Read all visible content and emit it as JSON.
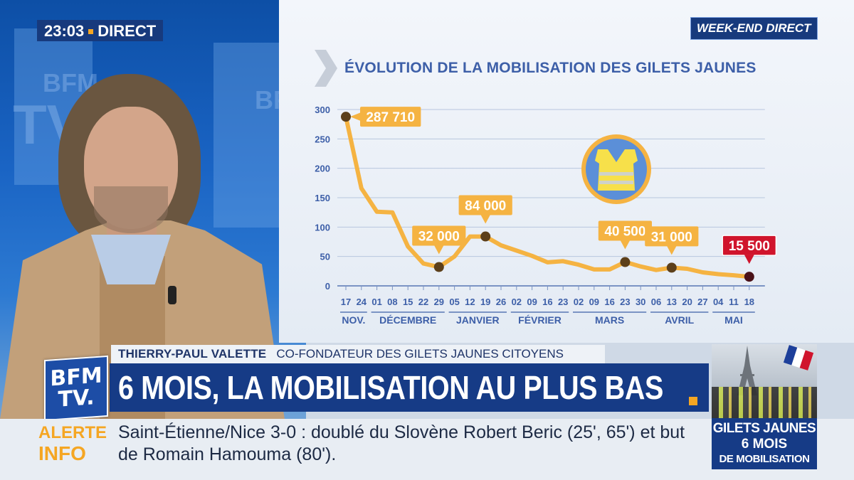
{
  "broadcast": {
    "clock": "23:03",
    "live_label": "DIRECT",
    "program_badge": "WEEK-END DIRECT",
    "channel_logo": [
      "BFM",
      "TV."
    ]
  },
  "speaker": {
    "name": "THIERRY-PAUL VALETTE",
    "title": "CO-FONDATEUR DES GILETS JAUNES CITOYENS"
  },
  "headline": "6 MOIS, LA MOBILISATION AU PLUS BAS",
  "ticker": {
    "label_line1": "ALERTE",
    "label_line2": "INFO",
    "text": "Saint-Étienne/Nice 3-0 : doublé du Slovène Robert Beric (25', 65') et but de Romain Hamouma (80')."
  },
  "thumbnail": {
    "line1": "GILETS JAUNES",
    "line2": "6 MOIS",
    "line3": "DE MOBILISATION"
  },
  "colors": {
    "navy": "#163b86",
    "accent_orange": "#f5a623",
    "line_orange": "#f5b342",
    "chart_blue": "#3d5fa8",
    "highlight_red": "#d0142c"
  },
  "icons": {
    "vest": "yellow-vest-icon",
    "chevron": "chevron-right-icon"
  },
  "chart_data": {
    "type": "line",
    "title": "ÉVOLUTION DE LA MOBILISATION DES GILETS JAUNES",
    "ylim": [
      0,
      300
    ],
    "yticks": [
      0,
      50,
      100,
      150,
      200,
      250,
      300
    ],
    "x": [
      "17",
      "24",
      "01",
      "08",
      "15",
      "22",
      "29",
      "05",
      "12",
      "19",
      "26",
      "02",
      "09",
      "16",
      "23",
      "02",
      "09",
      "16",
      "23",
      "30",
      "06",
      "13",
      "20",
      "27",
      "04",
      "11",
      "18"
    ],
    "months": [
      {
        "label": "NOV.",
        "from": 0,
        "to": 1
      },
      {
        "label": "DÉCEMBRE",
        "from": 2,
        "to": 6
      },
      {
        "label": "JANVIER",
        "from": 7,
        "to": 10
      },
      {
        "label": "FÉVRIER",
        "from": 11,
        "to": 14
      },
      {
        "label": "MARS",
        "from": 15,
        "to": 19
      },
      {
        "label": "AVRIL",
        "from": 20,
        "to": 23
      },
      {
        "label": "MAI",
        "from": 24,
        "to": 26
      }
    ],
    "series": [
      {
        "values": [
          287.7,
          166,
          126,
          125,
          67,
          38,
          32,
          50,
          84,
          84,
          69,
          60,
          51,
          40,
          42,
          36,
          28,
          28,
          40.5,
          33,
          27,
          31,
          29,
          23,
          20,
          18,
          15.5
        ]
      }
    ],
    "callouts": [
      {
        "index": 0,
        "label": "287 710",
        "highlight": false
      },
      {
        "index": 6,
        "label": "32 000",
        "highlight": false
      },
      {
        "index": 9,
        "label": "84 000",
        "highlight": false
      },
      {
        "index": 18,
        "label": "40 500",
        "highlight": false
      },
      {
        "index": 21,
        "label": "31 000",
        "highlight": false
      },
      {
        "index": 26,
        "label": "15 500",
        "highlight": true
      }
    ]
  }
}
